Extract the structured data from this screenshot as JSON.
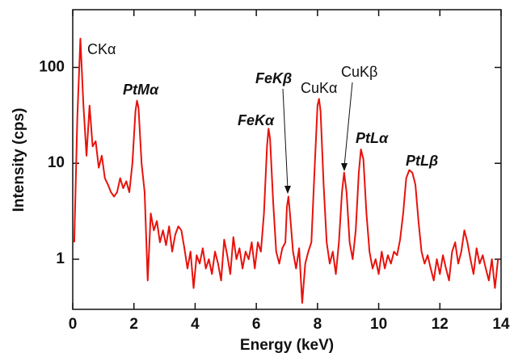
{
  "chart_data": {
    "type": "line",
    "xlabel": "Energy (keV)",
    "ylabel": "Intensity (cps)",
    "color": "#e8120c",
    "log_y": true,
    "xlim": [
      0,
      14
    ],
    "xticks": [
      0,
      2,
      4,
      6,
      8,
      10,
      12,
      14
    ],
    "ylim": [
      0.3,
      400
    ],
    "yticks": [
      1,
      10,
      100
    ],
    "annotations": [
      "CKα",
      "PtMα",
      "FeKβ",
      "CuKα",
      "CuKβ",
      "FeKα",
      "PtLα",
      "PtLβ"
    ],
    "x": [
      0.05,
      0.15,
      0.25,
      0.35,
      0.45,
      0.55,
      0.65,
      0.75,
      0.85,
      0.95,
      1.05,
      1.15,
      1.25,
      1.35,
      1.45,
      1.55,
      1.65,
      1.75,
      1.85,
      1.95,
      2.05,
      2.1,
      2.15,
      2.25,
      2.35,
      2.45,
      2.55,
      2.65,
      2.75,
      2.85,
      2.95,
      3.05,
      3.15,
      3.25,
      3.35,
      3.45,
      3.55,
      3.65,
      3.75,
      3.85,
      3.95,
      4.05,
      4.15,
      4.25,
      4.35,
      4.45,
      4.55,
      4.65,
      4.75,
      4.85,
      4.95,
      5.05,
      5.15,
      5.25,
      5.35,
      5.45,
      5.55,
      5.65,
      5.75,
      5.85,
      5.95,
      6.05,
      6.15,
      6.25,
      6.35,
      6.4,
      6.45,
      6.55,
      6.65,
      6.75,
      6.85,
      6.95,
      7,
      7.05,
      7.1,
      7.2,
      7.3,
      7.4,
      7.5,
      7.6,
      7.7,
      7.8,
      7.9,
      8,
      8.05,
      8.1,
      8.2,
      8.3,
      8.4,
      8.5,
      8.6,
      8.7,
      8.8,
      8.87,
      8.95,
      9.05,
      9.15,
      9.25,
      9.35,
      9.42,
      9.5,
      9.6,
      9.7,
      9.8,
      9.9,
      10,
      10.1,
      10.2,
      10.3,
      10.4,
      10.5,
      10.6,
      10.7,
      10.8,
      10.9,
      11,
      11.1,
      11.2,
      11.3,
      11.4,
      11.5,
      11.6,
      11.7,
      11.8,
      11.9,
      12,
      12.1,
      12.2,
      12.3,
      12.4,
      12.5,
      12.6,
      12.7,
      12.8,
      12.9,
      13,
      13.1,
      13.2,
      13.3,
      13.4,
      13.5,
      13.6,
      13.7,
      13.8,
      13.9
    ],
    "values": [
      1.5,
      30,
      200,
      40,
      12,
      40,
      15,
      17,
      9,
      12,
      7,
      6,
      5,
      4.5,
      5,
      7,
      5.5,
      6.5,
      5,
      10,
      35,
      45,
      38,
      10,
      5,
      0.6,
      3,
      2,
      2.5,
      1.5,
      2,
      1.4,
      2.2,
      1.2,
      1.8,
      2.2,
      2,
      1.3,
      0.8,
      1.2,
      0.5,
      1.1,
      0.9,
      1.3,
      0.8,
      1,
      0.7,
      1.2,
      0.9,
      0.6,
      1.6,
      1.1,
      0.7,
      1.7,
      1,
      1.3,
      0.8,
      1.2,
      1,
      1.5,
      0.8,
      1.5,
      1.2,
      3,
      15,
      23,
      18,
      4,
      1.2,
      0.9,
      1.3,
      1.5,
      3.5,
      4.5,
      3,
      1.2,
      0.8,
      1.3,
      0.35,
      0.9,
      1.2,
      1.5,
      8,
      40,
      47,
      35,
      6,
      1.5,
      0.9,
      1.2,
      0.7,
      1.5,
      5,
      8,
      5,
      1.5,
      1,
      2,
      8,
      14,
      11,
      3,
      1.2,
      0.8,
      1,
      0.7,
      1.2,
      0.8,
      1.1,
      0.9,
      1.2,
      1.1,
      1.6,
      3,
      7,
      8.5,
      8,
      6,
      2.5,
      1.2,
      0.9,
      1.1,
      0.8,
      0.6,
      1,
      0.7,
      1.1,
      0.8,
      0.6,
      1.2,
      1.5,
      0.9,
      1.2,
      2,
      1.5,
      1,
      0.7,
      1.3,
      0.9,
      1.1,
      0.8,
      0.6,
      1,
      0.5,
      1
    ]
  }
}
